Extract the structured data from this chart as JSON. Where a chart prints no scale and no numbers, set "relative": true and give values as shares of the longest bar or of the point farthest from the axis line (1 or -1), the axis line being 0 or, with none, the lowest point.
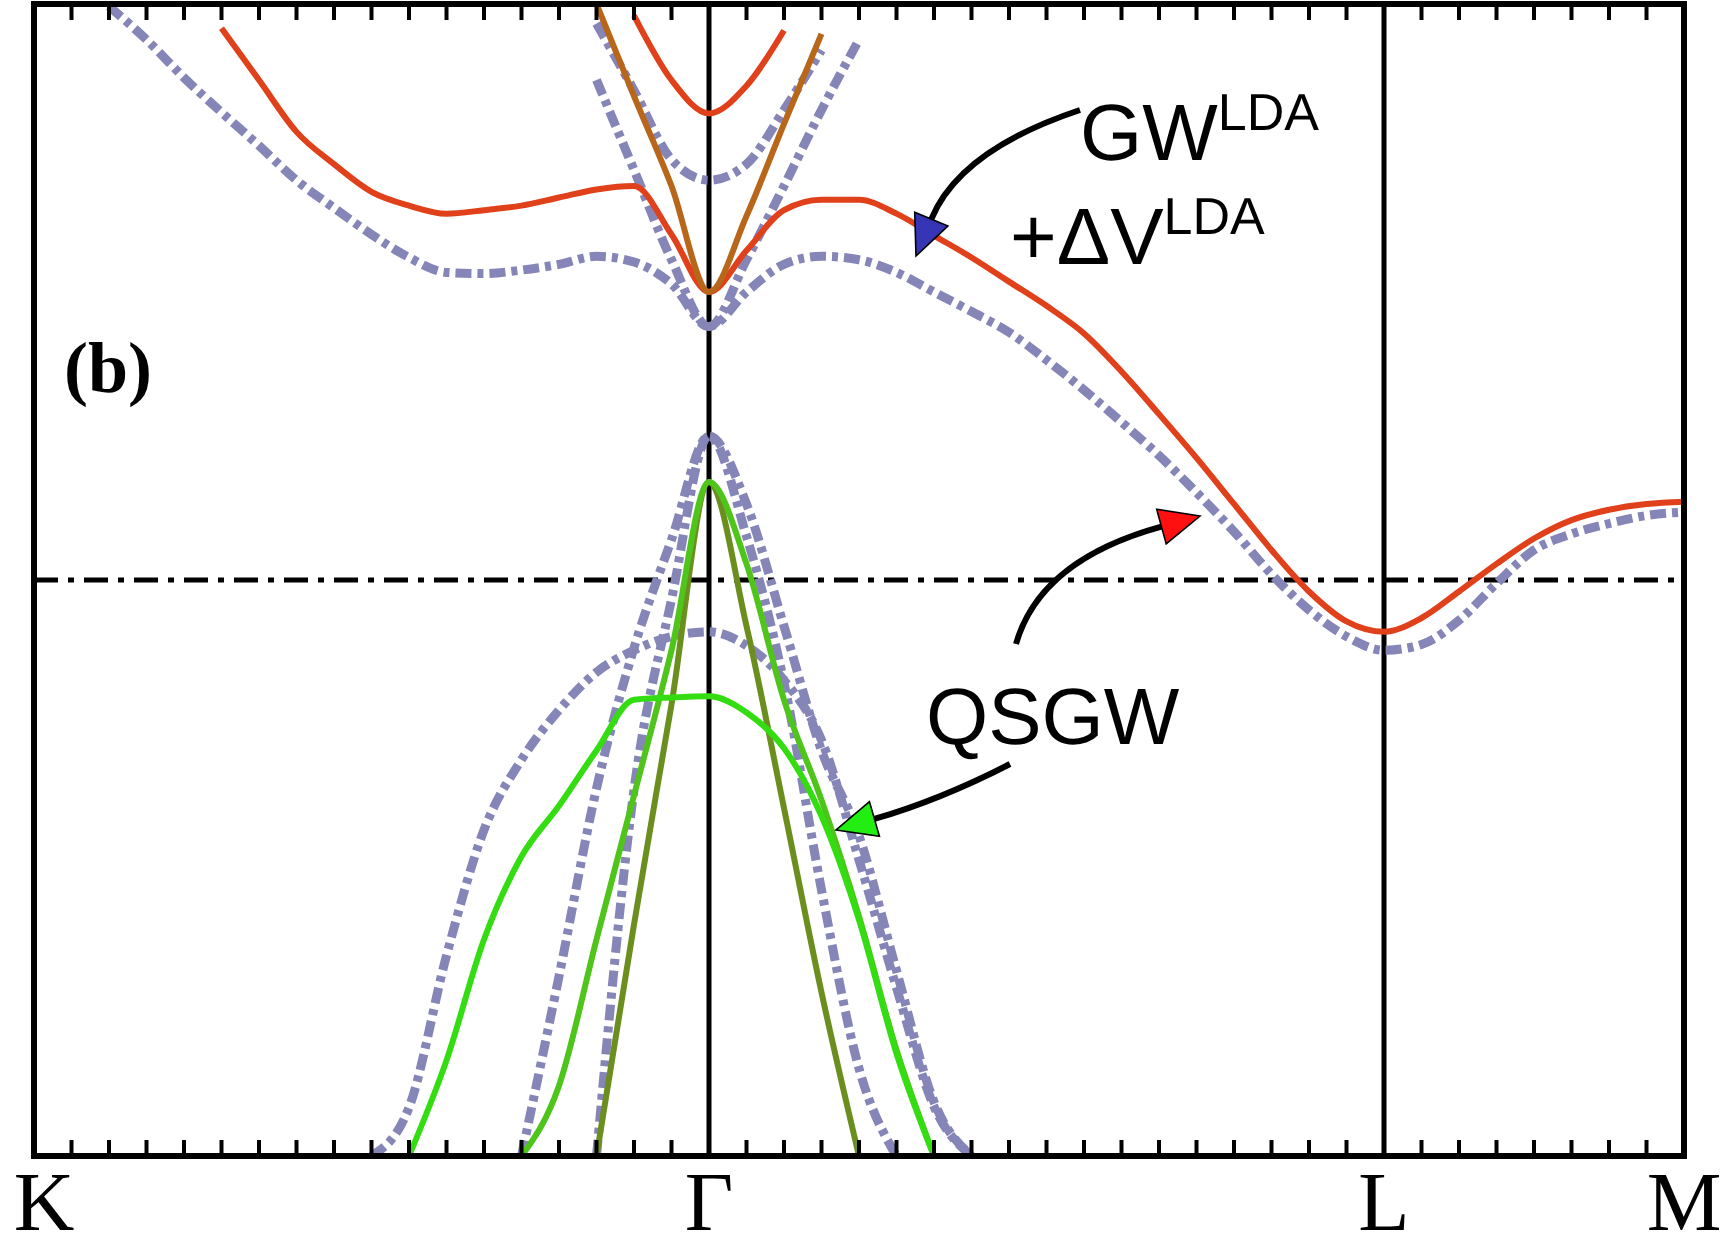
{
  "chart_data": {
    "type": "line",
    "relative": true,
    "categories": [
      "K",
      null,
      null,
      null,
      null,
      null,
      null,
      null,
      null,
      null,
      null,
      null,
      null,
      null,
      null,
      null,
      null,
      null,
      "Γ",
      null,
      null,
      null,
      null,
      null,
      null,
      null,
      null,
      null,
      null,
      null,
      null,
      null,
      null,
      null,
      null,
      null,
      "L",
      null,
      null,
      null,
      null,
      null,
      null,
      null,
      "M"
    ],
    "line_style": "solid",
    "marker": "none",
    "grid": "x",
    "ref_lines": [
      {
        "axis": "y",
        "value": 0.5,
        "line_style": "dashed",
        "color": "#000000"
      }
    ],
    "annotations": [
      "(b)",
      "GW$^{LDA}$ +ΔV$^{LDA}$",
      "QSGW"
    ],
    "series": [
      {
        "color": "#8585b8",
        "line_style": "dashed",
        "values": [
          null,
          null,
          0.998,
          0.969,
          0.936,
          0.906,
          0.877,
          0.847,
          0.823,
          0.8,
          0.78,
          0.767,
          0.766,
          0.769,
          0.774,
          0.781,
          0.776,
          0.757,
          0.72,
          0.75,
          0.774,
          0.781,
          0.778,
          0.767,
          0.75,
          0.733,
          0.715,
          0.691,
          0.665,
          0.637,
          0.608,
          0.576,
          0.542,
          0.505,
          0.474,
          0.451,
          0.439,
          0.444,
          0.465,
          0.497,
          0.526,
          0.54,
          0.549,
          0.556,
          0.559
        ]
      },
      {
        "color": "#8585b8",
        "line_style": "dashed",
        "values": [
          null,
          null,
          null,
          null,
          null,
          null,
          null,
          null,
          null,
          null,
          null,
          null,
          null,
          null,
          null,
          0.983,
          0.925,
          0.865,
          0.847,
          0.861,
          0.908,
          0.96,
          null,
          null,
          null,
          null,
          null,
          null,
          null,
          null,
          null,
          null,
          null,
          null,
          null,
          null,
          null,
          null,
          null,
          null,
          null,
          null,
          null,
          null,
          null
        ]
      },
      {
        "color": "#8585b8",
        "line_style": "dashed",
        "values": [
          null,
          null,
          null,
          null,
          null,
          null,
          null,
          null,
          null,
          null,
          null,
          null,
          null,
          null,
          null,
          0.934,
          0.856,
          0.778,
          0.72,
          0.778,
          0.842,
          0.908,
          0.969,
          null,
          null,
          null,
          null,
          null,
          null,
          null,
          null,
          null,
          null,
          null,
          null,
          null,
          null,
          null,
          null,
          null,
          null,
          null,
          null,
          null,
          null
        ]
      },
      {
        "color": "#8585b8",
        "line_style": "dashed",
        "values": [
          null,
          null,
          null,
          null,
          null,
          null,
          null,
          null,
          null,
          null,
          null,
          null,
          null,
          null,
          null,
          0,
          0.318,
          0.483,
          0.625,
          0.538,
          0.411,
          0.231,
          0.076,
          0,
          null,
          null,
          null,
          null,
          null,
          null,
          null,
          null,
          null,
          null,
          null,
          null,
          null,
          null,
          null,
          null,
          null,
          null,
          null,
          null,
          null
        ]
      },
      {
        "color": "#8585b8",
        "line_style": "dashed",
        "values": [
          null,
          null,
          null,
          null,
          null,
          null,
          null,
          null,
          null,
          null,
          null,
          null,
          null,
          0,
          0.156,
          0.319,
          0.441,
          0.535,
          0.625,
          0.566,
          0.46,
          0.352,
          0.278,
          0.161,
          0.047,
          0,
          null,
          null,
          null,
          null,
          null,
          null,
          null,
          null,
          null,
          null,
          null,
          null,
          null,
          null,
          null,
          null,
          null,
          null,
          null
        ]
      },
      {
        "color": "#8585b8",
        "line_style": "dashed",
        "values": [
          null,
          null,
          null,
          null,
          null,
          null,
          null,
          null,
          null,
          0,
          0.042,
          0.174,
          0.283,
          0.344,
          0.387,
          0.42,
          0.439,
          0.451,
          0.455,
          0.443,
          0.413,
          0.361,
          0.257,
          0.146,
          0.043,
          0,
          null,
          null,
          null,
          null,
          null,
          null,
          null,
          null,
          null,
          null,
          null,
          null,
          null,
          null,
          null,
          null,
          null,
          null,
          null
        ]
      },
      {
        "color": "#e0401a",
        "values": [
          null,
          null,
          null,
          null,
          null,
          0.979,
          0.934,
          0.889,
          0.861,
          0.837,
          0.825,
          0.818,
          0.821,
          0.825,
          0.832,
          0.839,
          0.842,
          0.8,
          0.75,
          0.786,
          0.821,
          0.83,
          0.83,
          0.818,
          0.799,
          0.78,
          0.759,
          0.738,
          0.714,
          0.681,
          0.644,
          0.606,
          0.566,
          0.526,
          0.49,
          0.464,
          0.455,
          0.467,
          0.49,
          0.514,
          0.536,
          0.552,
          0.561,
          0.566,
          0.568
        ]
      },
      {
        "color": "#e0401a",
        "values": [
          null,
          null,
          null,
          null,
          null,
          null,
          null,
          null,
          null,
          null,
          null,
          null,
          null,
          null,
          null,
          null,
          0.99,
          0.934,
          0.905,
          0.929,
          0.977,
          null,
          null,
          null,
          null,
          null,
          null,
          null,
          null,
          null,
          null,
          null,
          null,
          null,
          null,
          null,
          null,
          null,
          null,
          null,
          null,
          null,
          null,
          null,
          null
        ]
      },
      {
        "color": "#b8661a",
        "values": [
          null,
          null,
          null,
          null,
          null,
          null,
          null,
          null,
          null,
          null,
          null,
          null,
          null,
          null,
          null,
          1.0,
          0.92,
          0.842,
          0.75,
          0.816,
          0.896,
          0.974,
          null,
          null,
          null,
          null,
          null,
          null,
          null,
          null,
          null,
          null,
          null,
          null,
          null,
          null,
          null,
          null,
          null,
          null,
          null,
          null,
          null,
          null,
          null
        ]
      },
      {
        "color": "#6b8f1f",
        "values": [
          null,
          null,
          null,
          null,
          null,
          null,
          null,
          null,
          null,
          null,
          null,
          null,
          null,
          null,
          null,
          0,
          0.201,
          0.392,
          0.585,
          0.46,
          0.302,
          0.142,
          0,
          null,
          null,
          null,
          null,
          null,
          null,
          null,
          null,
          null,
          null,
          null,
          null,
          null,
          null,
          null,
          null,
          null,
          null,
          null,
          null,
          null,
          null
        ]
      },
      {
        "color": "#4fc41a",
        "values": [
          null,
          null,
          null,
          null,
          null,
          null,
          null,
          null,
          null,
          null,
          null,
          null,
          null,
          0,
          0.061,
          0.188,
          0.313,
          0.439,
          0.585,
          0.514,
          0.396,
          0.309,
          0.208,
          0.092,
          0,
          null,
          null,
          null,
          null,
          null,
          null,
          null,
          null,
          null,
          null,
          null,
          null,
          null,
          null,
          null,
          null,
          null,
          null,
          null,
          null
        ]
      },
      {
        "color": "#33dd11",
        "values": [
          null,
          null,
          null,
          null,
          null,
          null,
          null,
          null,
          null,
          null,
          0,
          0.083,
          0.188,
          0.26,
          0.304,
          0.352,
          0.396,
          0.398,
          0.399,
          0.385,
          0.354,
          0.295,
          0.205,
          0.089,
          0,
          null,
          null,
          null,
          null,
          null,
          null,
          null,
          null,
          null,
          null,
          null,
          null,
          null,
          null,
          null,
          null,
          null,
          null,
          null,
          null
        ]
      }
    ]
  }
}
